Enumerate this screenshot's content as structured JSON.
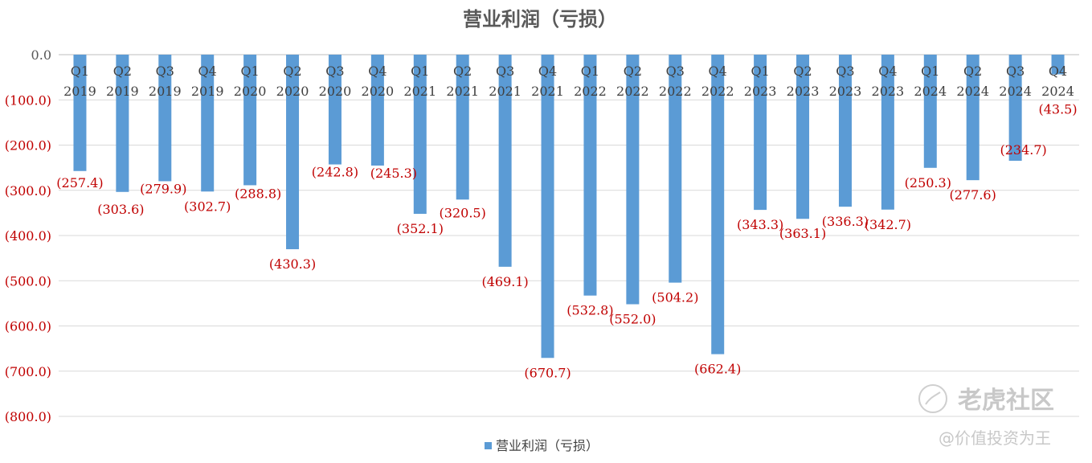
{
  "chart_data": {
    "type": "bar",
    "title": "营业利润（亏损）",
    "series": [
      {
        "name": "营业利润（亏损）",
        "color": "#5B9BD5",
        "values": [
          -257.4,
          -303.6,
          -279.9,
          -302.7,
          -288.8,
          -430.3,
          -242.8,
          -245.3,
          -352.1,
          -320.5,
          -469.1,
          -670.7,
          -532.8,
          -552.0,
          -504.2,
          -662.4,
          -343.3,
          -363.1,
          -336.3,
          -342.7,
          -250.3,
          -277.6,
          -234.7,
          -43.5
        ]
      }
    ],
    "categories": [
      {
        "q": "Q1",
        "y": "2019"
      },
      {
        "q": "Q2",
        "y": "2019"
      },
      {
        "q": "Q3",
        "y": "2019"
      },
      {
        "q": "Q4",
        "y": "2019"
      },
      {
        "q": "Q1",
        "y": "2020"
      },
      {
        "q": "Q2",
        "y": "2020"
      },
      {
        "q": "Q3",
        "y": "2020"
      },
      {
        "q": "Q4",
        "y": "2020"
      },
      {
        "q": "Q1",
        "y": "2021"
      },
      {
        "q": "Q2",
        "y": "2021"
      },
      {
        "q": "Q3",
        "y": "2021"
      },
      {
        "q": "Q4",
        "y": "2021"
      },
      {
        "q": "Q1",
        "y": "2022"
      },
      {
        "q": "Q2",
        "y": "2022"
      },
      {
        "q": "Q3",
        "y": "2022"
      },
      {
        "q": "Q4",
        "y": "2022"
      },
      {
        "q": "Q1",
        "y": "2023"
      },
      {
        "q": "Q2",
        "y": "2023"
      },
      {
        "q": "Q3",
        "y": "2023"
      },
      {
        "q": "Q4",
        "y": "2023"
      },
      {
        "q": "Q1",
        "y": "2024"
      },
      {
        "q": "Q2",
        "y": "2024"
      },
      {
        "q": "Q3",
        "y": "2024"
      },
      {
        "q": "Q4",
        "y": "2024"
      }
    ],
    "data_labels": [
      "(257.4)",
      "(303.6)",
      "(279.9)",
      "(302.7)",
      "(288.8)",
      "(430.3)",
      "(242.8)",
      "(245.3)",
      "(352.1)",
      "(320.5)",
      "(469.1)",
      "(670.7)",
      "(532.8)",
      "(552.0)",
      "(504.2)",
      "(662.4)",
      "(343.3)",
      "(363.1)",
      "(336.3)",
      "(342.7)",
      "(250.3)",
      "(277.6)",
      "(234.7)",
      "(43.5)"
    ],
    "y_ticks": [
      0,
      -100,
      -200,
      -300,
      -400,
      -500,
      -600,
      -700,
      -800
    ],
    "y_tick_labels": [
      "0.0",
      "(100.0)",
      "(200.0)",
      "(300.0)",
      "(400.0)",
      "(500.0)",
      "(600.0)",
      "(700.0)",
      "(800.0)"
    ],
    "ylim": [
      -800,
      0
    ],
    "grid": true,
    "legend_position": "bottom",
    "tick_label_color": "#C00000",
    "data_label_color": "#C00000"
  },
  "watermark": {
    "brand": "老虎社区",
    "handle": "@价值投资为王"
  }
}
